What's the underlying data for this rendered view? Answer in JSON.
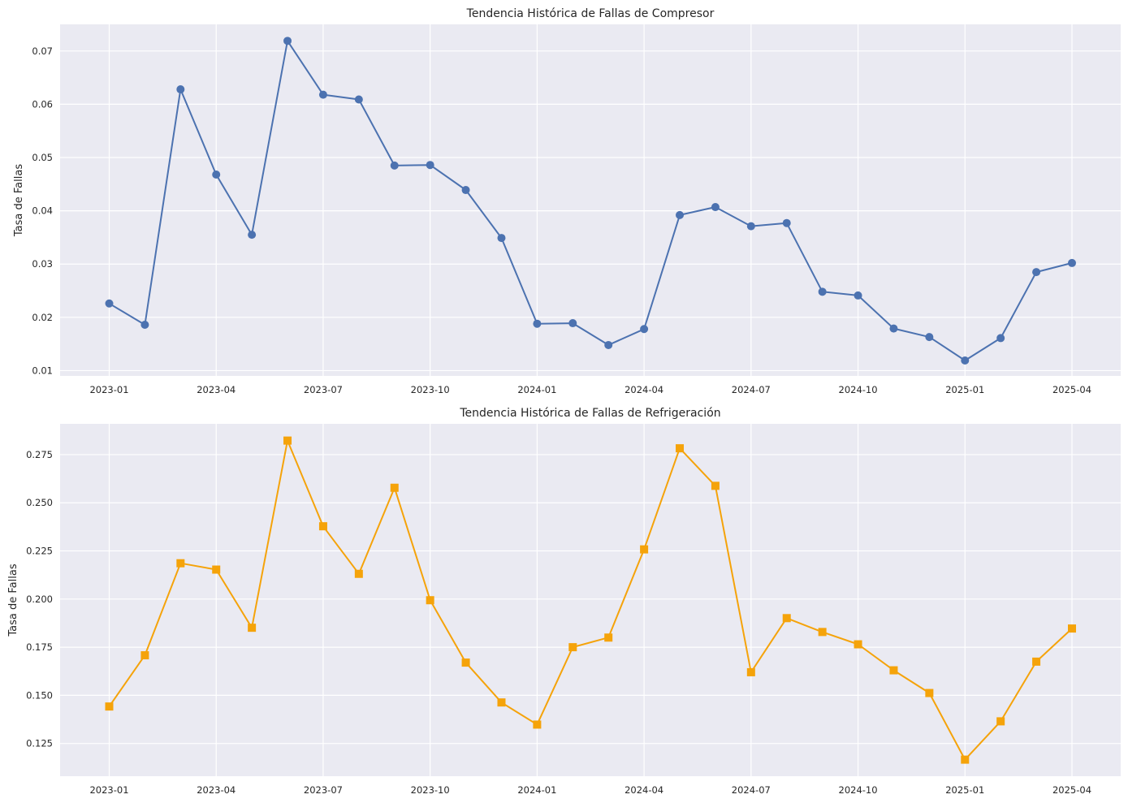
{
  "chart_data": [
    {
      "type": "line",
      "title": "Tendencia Histórica de Fallas de Compresor",
      "xlabel": "",
      "ylabel": "Tasa de Fallas",
      "x_ticks": [
        "2023-01",
        "2023-04",
        "2023-07",
        "2023-10",
        "2024-01",
        "2024-04",
        "2024-07",
        "2024-10",
        "2025-01",
        "2025-04"
      ],
      "y_ticks": [
        "0.01",
        "0.02",
        "0.03",
        "0.04",
        "0.05",
        "0.06",
        "0.07"
      ],
      "ylim": [
        0.009,
        0.075
      ],
      "grid": true,
      "x": [
        "2023-01",
        "2023-02",
        "2023-03",
        "2023-04",
        "2023-05",
        "2023-06",
        "2023-07",
        "2023-08",
        "2023-09",
        "2023-10",
        "2023-11",
        "2023-12",
        "2024-01",
        "2024-02",
        "2024-03",
        "2024-04",
        "2024-05",
        "2024-06",
        "2024-07",
        "2024-08",
        "2024-09",
        "2024-10",
        "2024-11",
        "2024-12",
        "2025-01",
        "2025-02",
        "2025-03",
        "2025-04"
      ],
      "series": [
        {
          "color": "#4c72b0",
          "marker": "circle",
          "values": [
            0.0226,
            0.0186,
            0.0628,
            0.0468,
            0.0355,
            0.0719,
            0.0618,
            0.0609,
            0.0485,
            0.0486,
            0.0439,
            0.0349,
            0.0188,
            0.0189,
            0.0148,
            0.0178,
            0.0392,
            0.0407,
            0.0371,
            0.0377,
            0.0248,
            0.0241,
            0.0179,
            0.0163,
            0.0119,
            0.0161,
            0.0285,
            0.0302
          ]
        }
      ]
    },
    {
      "type": "line",
      "title": "Tendencia Histórica de Fallas de Refrigeración",
      "xlabel": "",
      "ylabel": "Tasa de Fallas",
      "x_ticks": [
        "2023-01",
        "2023-04",
        "2023-07",
        "2023-10",
        "2024-01",
        "2024-04",
        "2024-07",
        "2024-10",
        "2025-01",
        "2025-04"
      ],
      "y_ticks": [
        "0.125",
        "0.150",
        "0.175",
        "0.200",
        "0.225",
        "0.250",
        "0.275"
      ],
      "ylim": [
        0.108,
        0.291
      ],
      "grid": true,
      "x": [
        "2023-01",
        "2023-02",
        "2023-03",
        "2023-04",
        "2023-05",
        "2023-06",
        "2023-07",
        "2023-08",
        "2023-09",
        "2023-10",
        "2023-11",
        "2023-12",
        "2024-01",
        "2024-02",
        "2024-03",
        "2024-04",
        "2024-05",
        "2024-06",
        "2024-07",
        "2024-08",
        "2024-09",
        "2024-10",
        "2024-11",
        "2024-12",
        "2025-01",
        "2025-02",
        "2025-03",
        "2025-04"
      ],
      "series": [
        {
          "color": "#f5a30a",
          "marker": "square",
          "values": [
            0.1442,
            0.1708,
            0.2186,
            0.2153,
            0.1851,
            0.2823,
            0.2378,
            0.2131,
            0.2578,
            0.1994,
            0.167,
            0.1463,
            0.1348,
            0.175,
            0.18,
            0.2258,
            0.2783,
            0.2588,
            0.162,
            0.1901,
            0.1829,
            0.1765,
            0.163,
            0.1512,
            0.1166,
            0.1365,
            0.1675,
            0.1847
          ]
        }
      ]
    }
  ]
}
